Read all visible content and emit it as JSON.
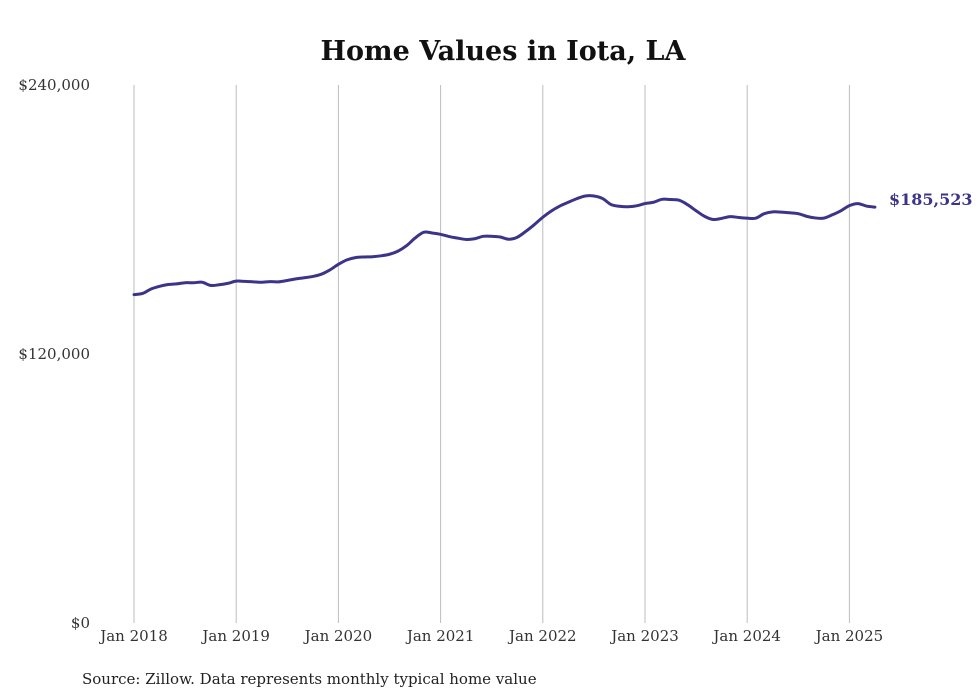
{
  "chart_data": {
    "type": "line",
    "title": "Home Values in Iota, LA",
    "xlabel": "",
    "ylabel": "",
    "ylim": [
      0,
      240000
    ],
    "yticks": [
      {
        "value": 0,
        "label": "$0"
      },
      {
        "value": 120000,
        "label": "$120,000"
      },
      {
        "value": 240000,
        "label": "$240,000"
      }
    ],
    "xticks": [
      {
        "value": "2018-01",
        "label": "Jan 2018"
      },
      {
        "value": "2019-01",
        "label": "Jan 2019"
      },
      {
        "value": "2020-01",
        "label": "Jan 2020"
      },
      {
        "value": "2021-01",
        "label": "Jan 2021"
      },
      {
        "value": "2022-01",
        "label": "Jan 2022"
      },
      {
        "value": "2023-01",
        "label": "Jan 2023"
      },
      {
        "value": "2024-01",
        "label": "Jan 2024"
      },
      {
        "value": "2025-01",
        "label": "Jan 2025"
      }
    ],
    "grid": "vertical",
    "line_color": "#3b3489",
    "series": [
      {
        "x": [
          "2018-01",
          "2018-02",
          "2018-03",
          "2018-04",
          "2018-05",
          "2018-06",
          "2018-07",
          "2018-08",
          "2018-09",
          "2018-10",
          "2018-11",
          "2018-12",
          "2019-01",
          "2019-02",
          "2019-03",
          "2019-04",
          "2019-05",
          "2019-06",
          "2019-07",
          "2019-08",
          "2019-09",
          "2019-10",
          "2019-11",
          "2019-12",
          "2020-01",
          "2020-02",
          "2020-03",
          "2020-04",
          "2020-05",
          "2020-06",
          "2020-07",
          "2020-08",
          "2020-09",
          "2020-10",
          "2020-11",
          "2020-12",
          "2021-01",
          "2021-02",
          "2021-03",
          "2021-04",
          "2021-05",
          "2021-06",
          "2021-07",
          "2021-08",
          "2021-09",
          "2021-10",
          "2021-11",
          "2021-12",
          "2022-01",
          "2022-02",
          "2022-03",
          "2022-04",
          "2022-05",
          "2022-06",
          "2022-07",
          "2022-08",
          "2022-09",
          "2022-10",
          "2022-11",
          "2022-12",
          "2023-01",
          "2023-02",
          "2023-03",
          "2023-04",
          "2023-05",
          "2023-06",
          "2023-07",
          "2023-08",
          "2023-09",
          "2023-10",
          "2023-11",
          "2023-12",
          "2024-01",
          "2024-02",
          "2024-03",
          "2024-04",
          "2024-05",
          "2024-06",
          "2024-07",
          "2024-08",
          "2024-09",
          "2024-10",
          "2024-11",
          "2024-12",
          "2025-01",
          "2025-02",
          "2025-03",
          "2025-04"
        ],
        "values": [
          146500,
          147000,
          149000,
          150200,
          151000,
          151300,
          151800,
          151800,
          152000,
          150600,
          150900,
          151500,
          152500,
          152400,
          152200,
          152000,
          152300,
          152200,
          152800,
          153500,
          154000,
          154600,
          155600,
          157500,
          160000,
          162000,
          163000,
          163300,
          163400,
          163800,
          164500,
          165900,
          168300,
          171700,
          174300,
          174000,
          173400,
          172400,
          171700,
          171100,
          171400,
          172500,
          172500,
          172200,
          171200,
          172100,
          174700,
          177700,
          181000,
          183800,
          186000,
          187700,
          189300,
          190500,
          190500,
          189400,
          186700,
          185900,
          185700,
          186100,
          187100,
          187700,
          189000,
          188900,
          188600,
          186600,
          183900,
          181400,
          180000,
          180500,
          181300,
          180900,
          180600,
          180600,
          182600,
          183400,
          183300,
          183000,
          182600,
          181400,
          180700,
          180600,
          182100,
          183900,
          186200,
          187100,
          186000,
          185523
        ]
      }
    ],
    "end_label": "$185,523"
  },
  "source_text": "Source: Zillow. Data represents monthly typical home value"
}
